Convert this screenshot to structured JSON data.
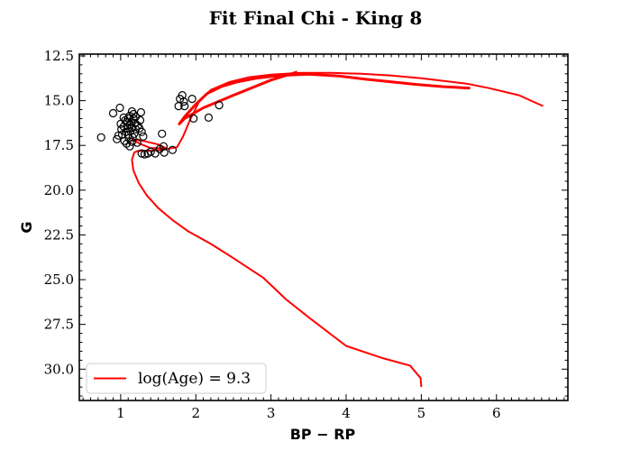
{
  "chart_data": {
    "type": "scatter",
    "title": "Fit Final Chi - King 8",
    "xlabel": "BP − RP",
    "ylabel": "G",
    "xlim": [
      0.45,
      6.95
    ],
    "ylim": [
      31.75,
      12.4
    ],
    "y_inverted": true,
    "xticks": [
      1,
      2,
      3,
      4,
      5,
      6
    ],
    "yticks": [
      12.5,
      15.0,
      17.5,
      20.0,
      22.5,
      25.0,
      27.5,
      30.0
    ],
    "ytick_labels": [
      "12.5",
      "15.0",
      "17.5",
      "20.0",
      "22.5",
      "25.0",
      "27.5",
      "30.0"
    ],
    "grid": false,
    "legend_position": "lower-left",
    "colors": {
      "isochrone": "#ff0000",
      "stars": "#000000"
    },
    "series": [
      {
        "name": "log(Age) = 9.3",
        "kind": "line",
        "points": [
          [
            5.0,
            31.0
          ],
          [
            4.99,
            30.5
          ],
          [
            4.85,
            29.8
          ],
          [
            4.5,
            29.4
          ],
          [
            4.0,
            28.7
          ],
          [
            3.5,
            27.1
          ],
          [
            3.2,
            26.1
          ],
          [
            2.9,
            24.9
          ],
          [
            2.5,
            23.8
          ],
          [
            2.2,
            23.0
          ],
          [
            1.9,
            22.3
          ],
          [
            1.7,
            21.7
          ],
          [
            1.5,
            21.0
          ],
          [
            1.35,
            20.3
          ],
          [
            1.24,
            19.6
          ],
          [
            1.17,
            18.9
          ],
          [
            1.15,
            18.3
          ],
          [
            1.18,
            17.9
          ],
          [
            1.23,
            17.8
          ],
          [
            1.35,
            17.8
          ],
          [
            1.55,
            17.75
          ],
          [
            1.75,
            17.6
          ],
          [
            1.83,
            17.0
          ],
          [
            1.92,
            16.1
          ],
          [
            2.05,
            15.0
          ],
          [
            2.2,
            14.4
          ],
          [
            2.45,
            13.95
          ],
          [
            2.7,
            13.7
          ],
          [
            3.0,
            13.55
          ],
          [
            3.4,
            13.45
          ],
          [
            3.8,
            13.45
          ],
          [
            4.2,
            13.5
          ],
          [
            4.6,
            13.6
          ],
          [
            5.0,
            13.75
          ],
          [
            5.3,
            13.9
          ],
          [
            5.6,
            14.05
          ],
          [
            5.9,
            14.3
          ],
          [
            6.3,
            14.7
          ],
          [
            6.62,
            15.3
          ]
        ]
      },
      {
        "name": "",
        "kind": "line",
        "points": [
          [
            5.65,
            14.3
          ],
          [
            5.3,
            14.22
          ],
          [
            4.95,
            14.1
          ],
          [
            4.6,
            13.95
          ],
          [
            4.25,
            13.8
          ],
          [
            3.9,
            13.62
          ],
          [
            3.5,
            13.52
          ],
          [
            3.1,
            13.6
          ],
          [
            2.8,
            13.75
          ],
          [
            2.55,
            13.95
          ],
          [
            2.35,
            14.2
          ],
          [
            2.15,
            14.6
          ],
          [
            2.0,
            15.2
          ],
          [
            1.85,
            15.9
          ],
          [
            1.78,
            16.3
          ],
          [
            1.85,
            16.0
          ],
          [
            2.1,
            15.4
          ],
          [
            2.5,
            14.7
          ],
          [
            3.0,
            13.85
          ],
          [
            3.35,
            13.4
          ]
        ]
      },
      {
        "name": "",
        "kind": "line",
        "points": [
          [
            1.15,
            17.15
          ],
          [
            1.3,
            17.25
          ],
          [
            1.5,
            17.45
          ],
          [
            1.6,
            17.65
          ],
          [
            1.4,
            17.65
          ],
          [
            1.25,
            17.4
          ],
          [
            1.15,
            17.15
          ]
        ]
      },
      {
        "name": "",
        "kind": "scatter",
        "points": [
          [
            0.74,
            17.05
          ],
          [
            0.9,
            15.7
          ],
          [
            0.95,
            17.15
          ],
          [
            0.97,
            16.95
          ],
          [
            0.99,
            15.4
          ],
          [
            1.0,
            16.3
          ],
          [
            1.01,
            16.6
          ],
          [
            1.02,
            16.9
          ],
          [
            1.04,
            15.95
          ],
          [
            1.04,
            16.45
          ],
          [
            1.05,
            17.25
          ],
          [
            1.06,
            16.1
          ],
          [
            1.07,
            16.75
          ],
          [
            1.08,
            16.2
          ],
          [
            1.08,
            17.4
          ],
          [
            1.09,
            16.55
          ],
          [
            1.1,
            16.0
          ],
          [
            1.1,
            16.9
          ],
          [
            1.11,
            17.1
          ],
          [
            1.12,
            15.85
          ],
          [
            1.12,
            16.35
          ],
          [
            1.12,
            17.55
          ],
          [
            1.13,
            16.7
          ],
          [
            1.14,
            16.2
          ],
          [
            1.15,
            15.6
          ],
          [
            1.15,
            16.5
          ],
          [
            1.15,
            17.3
          ],
          [
            1.16,
            17.05
          ],
          [
            1.17,
            15.75
          ],
          [
            1.17,
            16.0
          ],
          [
            1.18,
            16.85
          ],
          [
            1.19,
            16.25
          ],
          [
            1.2,
            15.9
          ],
          [
            1.2,
            16.6
          ],
          [
            1.22,
            17.35
          ],
          [
            1.23,
            16.4
          ],
          [
            1.25,
            16.55
          ],
          [
            1.26,
            16.1
          ],
          [
            1.27,
            15.65
          ],
          [
            1.28,
            16.75
          ],
          [
            1.3,
            17.0
          ],
          [
            1.28,
            17.95
          ],
          [
            1.32,
            18.0
          ],
          [
            1.36,
            17.95
          ],
          [
            1.4,
            17.85
          ],
          [
            1.46,
            17.95
          ],
          [
            1.52,
            17.7
          ],
          [
            1.55,
            16.85
          ],
          [
            1.57,
            17.55
          ],
          [
            1.58,
            17.9
          ],
          [
            1.69,
            17.75
          ],
          [
            1.77,
            15.3
          ],
          [
            1.79,
            14.9
          ],
          [
            1.82,
            14.7
          ],
          [
            1.84,
            15.05
          ],
          [
            1.85,
            15.3
          ],
          [
            1.95,
            14.9
          ],
          [
            1.97,
            16.0
          ],
          [
            2.17,
            15.95
          ],
          [
            2.31,
            15.25
          ]
        ]
      }
    ]
  }
}
